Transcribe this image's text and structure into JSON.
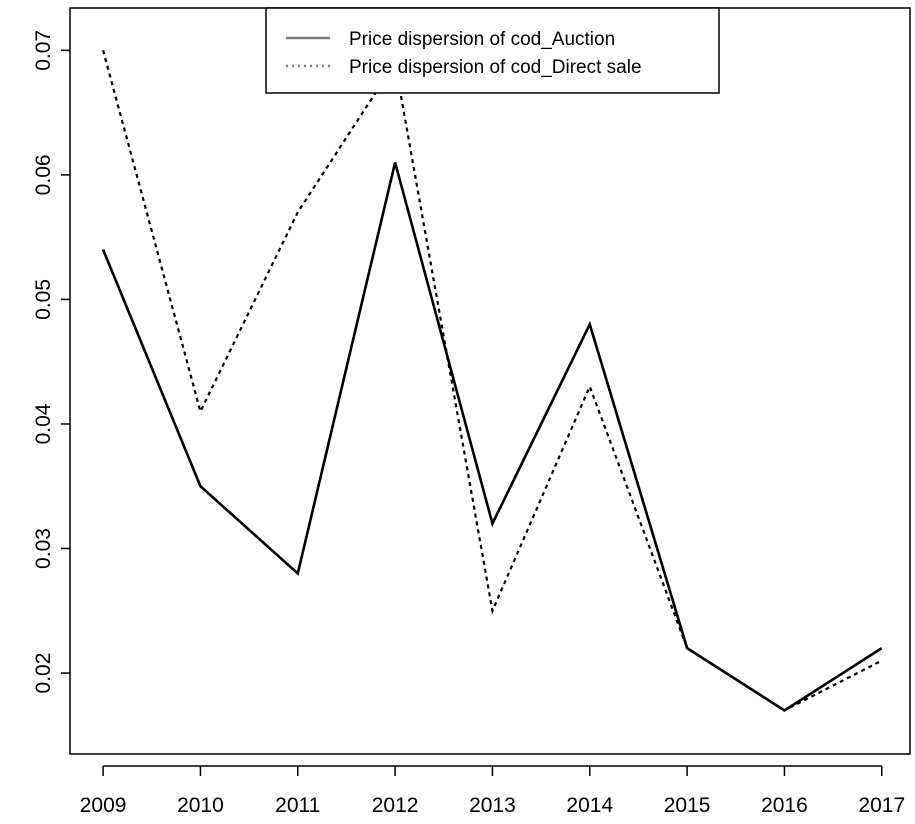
{
  "chart_data": {
    "type": "line",
    "title": "",
    "xlabel": "",
    "ylabel": "",
    "x": [
      2009,
      2010,
      2011,
      2012,
      2013,
      2014,
      2015,
      2016,
      2017
    ],
    "x_tick_labels": [
      "2009",
      "2010",
      "2011",
      "2012",
      "2013",
      "2014",
      "2015",
      "2016",
      "2017"
    ],
    "y_tick_labels": [
      "0.02",
      "0.03",
      "0.04",
      "0.05",
      "0.06",
      "0.07"
    ],
    "y_ticks": [
      0.02,
      0.03,
      0.04,
      0.05,
      0.06,
      0.07
    ],
    "ylim": [
      0.0135,
      0.0734
    ],
    "xlim": [
      2008.66,
      2017.29
    ],
    "grid": false,
    "legend": "top-center",
    "series": [
      {
        "name": "Price dispersion of cod_Auction",
        "values": [
          0.054,
          0.035,
          0.028,
          0.061,
          0.032,
          0.048,
          0.022,
          0.017,
          0.022
        ],
        "style": "solid",
        "color": "#000000"
      },
      {
        "name": "Price dispersion of cod_Direct sale",
        "values": [
          0.07,
          0.041,
          0.057,
          0.069,
          0.025,
          0.043,
          0.022,
          0.017,
          0.021
        ],
        "style": "dotted",
        "color": "#000000"
      }
    ]
  }
}
